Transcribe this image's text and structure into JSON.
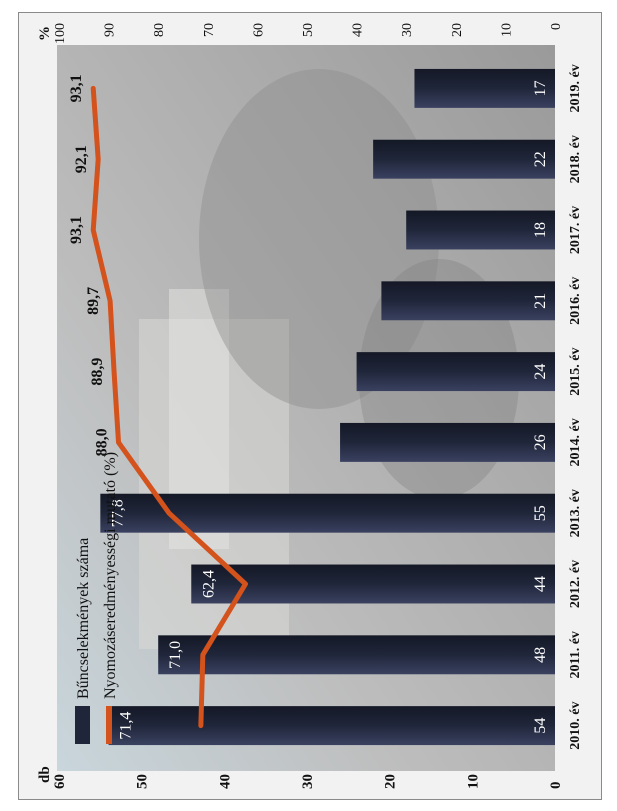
{
  "chart_data": {
    "type": "bar",
    "categories": [
      "2010. év",
      "2011. év",
      "2012. év",
      "2013. év",
      "2014. év",
      "2015. év",
      "2016. év",
      "2017. év",
      "2018. év",
      "2019. év"
    ],
    "series": [
      {
        "name": "Bűncselekmények száma",
        "type": "bar",
        "axis": "left",
        "values": [
          54,
          48,
          44,
          55,
          26,
          24,
          21,
          18,
          22,
          17
        ],
        "labels": [
          "54",
          "48",
          "44",
          "55",
          "26",
          "24",
          "21",
          "18",
          "22",
          "17"
        ]
      },
      {
        "name": "Nyomozáseredményességi mutató (%)",
        "type": "line",
        "axis": "right",
        "values": [
          71.4,
          71.0,
          62.4,
          77.8,
          88.0,
          88.9,
          89.7,
          93.1,
          92.1,
          93.1
        ],
        "labels": [
          "71,4",
          "71,0",
          "62,4",
          "77,8",
          "88,0",
          "88,9",
          "89,7",
          "93,1",
          "92,1",
          "93,1"
        ]
      }
    ],
    "left_axis": {
      "unit": "db",
      "min": 0,
      "max": 60,
      "ticks": [
        0,
        10,
        20,
        30,
        40,
        50,
        60
      ]
    },
    "right_axis": {
      "unit": "%",
      "min": 0,
      "max": 100,
      "ticks": [
        0,
        10,
        20,
        30,
        40,
        50,
        60,
        70,
        80,
        90,
        100
      ]
    },
    "legend_position": "top-left",
    "grid": false,
    "colors": {
      "bar": "#20263a",
      "line": "#d4521c",
      "background": "#bdbdbd"
    },
    "orientation": "rotated-90-ccw"
  }
}
